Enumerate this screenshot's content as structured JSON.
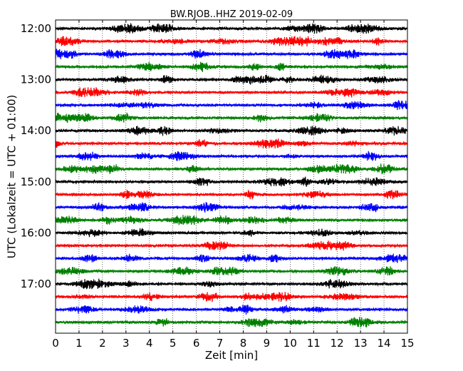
{
  "chart_data": {
    "type": "line",
    "title": "BW.RJOB..HHZ 2019-02-09",
    "xlabel": "Zeit  [min]",
    "ylabel": "UTC (Lokalzeit = UTC + 01:00)",
    "xlim": [
      0,
      15
    ],
    "x_ticks": [
      "0",
      "1",
      "2",
      "3",
      "4",
      "5",
      "6",
      "7",
      "8",
      "9",
      "10",
      "11",
      "12",
      "13",
      "14",
      "15"
    ],
    "y_ticks": [
      "12:00",
      "13:00",
      "14:00",
      "15:00",
      "16:00",
      "17:00"
    ],
    "grid": "vertical-dotted",
    "trace_colors": [
      "#000000",
      "#ff0000",
      "#0000ff",
      "#008000"
    ],
    "series": [
      {
        "start": "12:00"
      },
      {
        "start": "12:15"
      },
      {
        "start": "12:30"
      },
      {
        "start": "12:45"
      },
      {
        "start": "13:00"
      },
      {
        "start": "13:15"
      },
      {
        "start": "13:30"
      },
      {
        "start": "13:45"
      },
      {
        "start": "14:00"
      },
      {
        "start": "14:15"
      },
      {
        "start": "14:30"
      },
      {
        "start": "14:45"
      },
      {
        "start": "15:00"
      },
      {
        "start": "15:15"
      },
      {
        "start": "15:30"
      },
      {
        "start": "15:45"
      },
      {
        "start": "16:00"
      },
      {
        "start": "16:15"
      },
      {
        "start": "16:30"
      },
      {
        "start": "16:45"
      },
      {
        "start": "17:00"
      },
      {
        "start": "17:15"
      },
      {
        "start": "17:30"
      },
      {
        "start": "17:45"
      }
    ]
  }
}
